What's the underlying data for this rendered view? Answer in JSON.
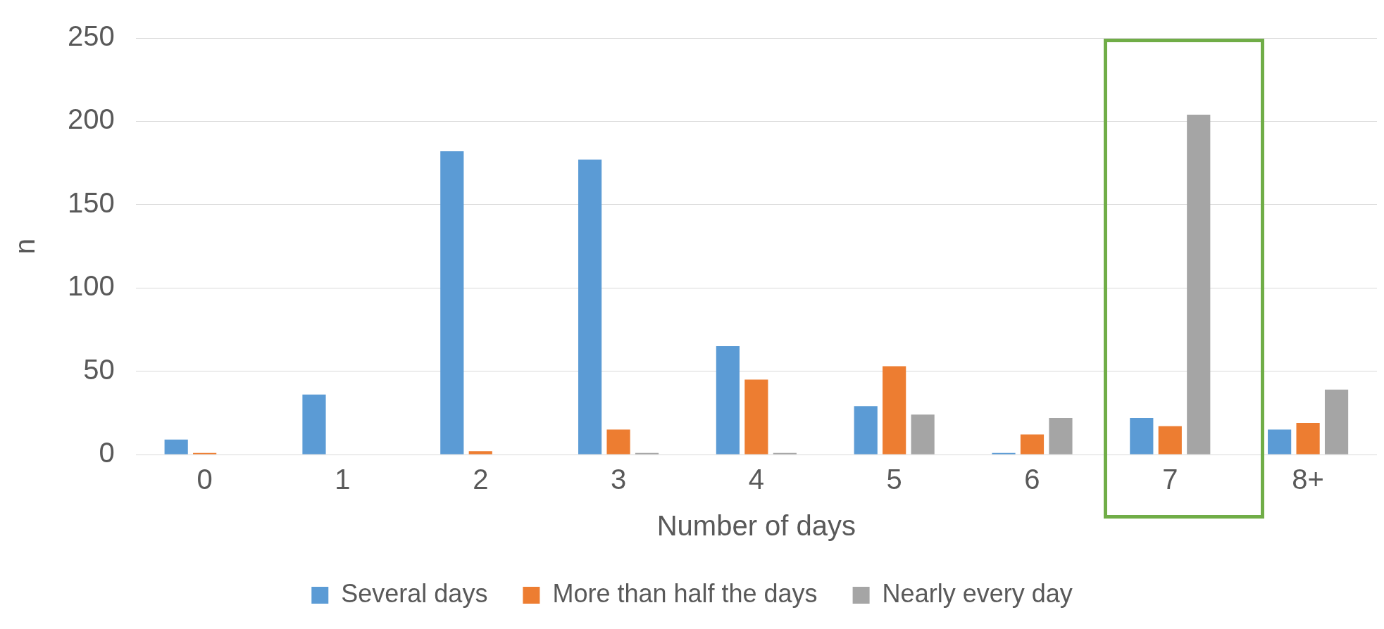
{
  "chart_data": {
    "type": "bar",
    "xlabel": "Number of days",
    "ylabel": "n",
    "categories": [
      "0",
      "1",
      "2",
      "3",
      "4",
      "5",
      "6",
      "7",
      "8+"
    ],
    "series": [
      {
        "name": "Several days",
        "color": "#5b9bd5",
        "values": [
          9,
          36,
          182,
          177,
          65,
          29,
          1,
          22,
          15
        ]
      },
      {
        "name": "More than half the days",
        "color": "#ed7d31",
        "values": [
          1,
          0,
          2,
          15,
          45,
          53,
          12,
          17,
          19
        ]
      },
      {
        "name": "Nearly every day",
        "color": "#a5a5a5",
        "values": [
          0,
          0,
          0,
          1,
          1,
          24,
          22,
          204,
          39
        ]
      }
    ],
    "ylim": [
      0,
      250
    ],
    "yticks": [
      0,
      50,
      100,
      150,
      200,
      250
    ],
    "grid": "y",
    "legend": "bottom"
  }
}
